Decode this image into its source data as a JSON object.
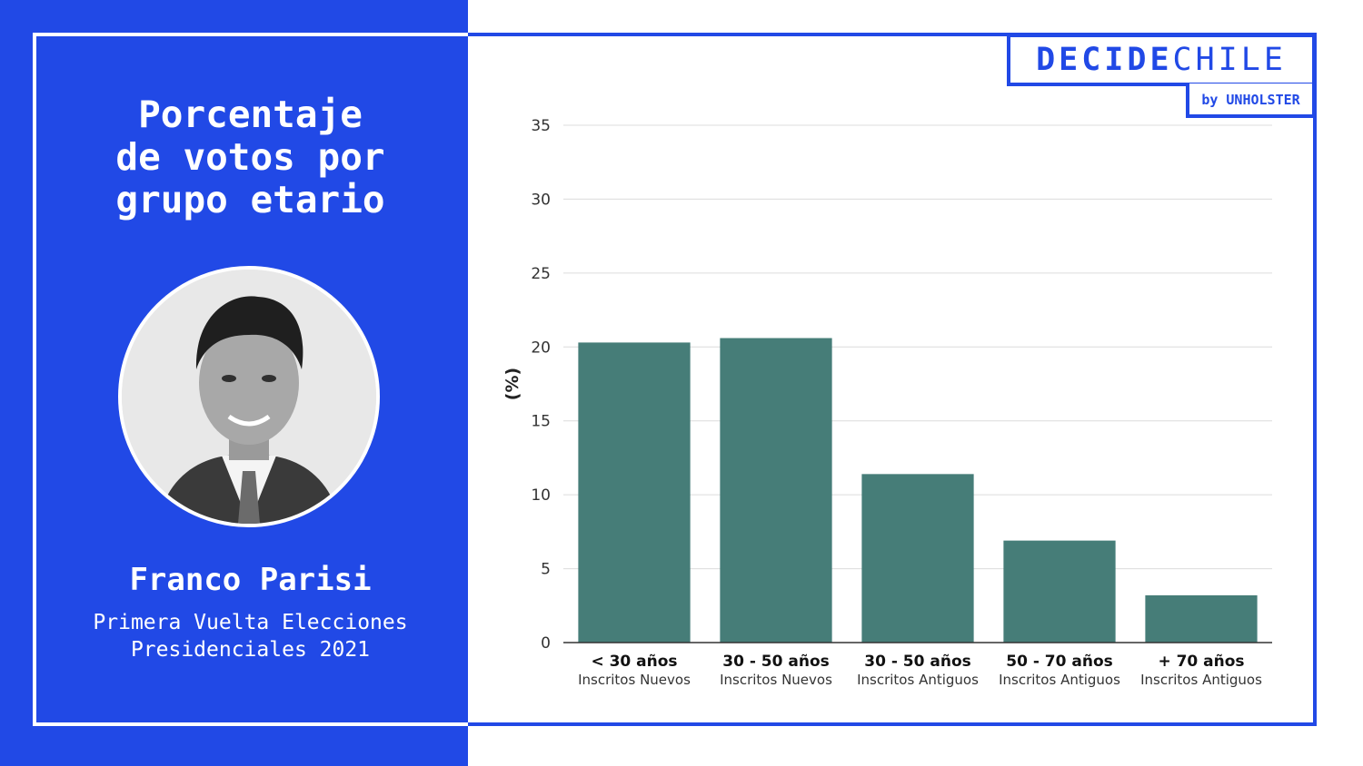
{
  "panel": {
    "title": "Porcentaje\nde votos por\ngrupo etario",
    "candidate_name": "Franco Parisi",
    "candidate_subtitle": "Primera Vuelta Elecciones\nPresidenciales 2021"
  },
  "logo": {
    "part_bold": "DECIDE",
    "part_light": "CHILE",
    "byline": "by UNHOLSTER"
  },
  "colors": {
    "brand_blue": "#2149e6",
    "bar": "#467d78"
  },
  "chart_data": {
    "type": "bar",
    "categories": [
      "< 30 años",
      "30 - 50 años",
      "30 - 50 años",
      "50 - 70 años",
      "+ 70 años"
    ],
    "subcategories": [
      "Inscritos Nuevos",
      "Inscritos Nuevos",
      "Inscritos Antiguos",
      "Inscritos Antiguos",
      "Inscritos Antiguos"
    ],
    "values": [
      20.3,
      20.6,
      11.4,
      6.9,
      3.2
    ],
    "ylabel": "(%)",
    "ylim": [
      0,
      35
    ],
    "yticks": [
      0,
      5,
      10,
      15,
      20,
      25,
      30,
      35
    ],
    "grid": true
  }
}
